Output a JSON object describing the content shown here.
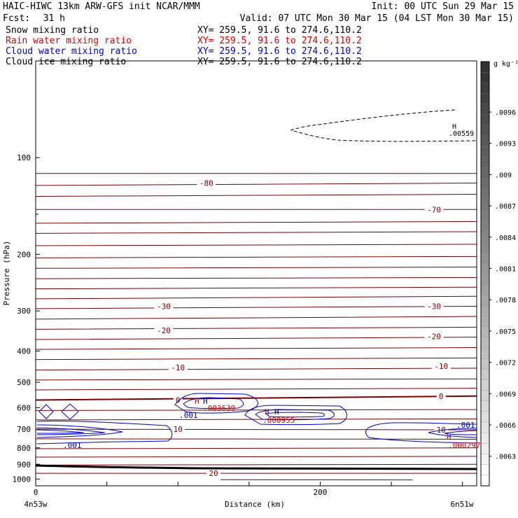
{
  "header": {
    "line1_left": "HAIC-HIWC 13km ARW-GFS init    NCAR/MMM",
    "line1_right": "Init: 00 UTC Sun 29 Mar 15",
    "fcst_label": "Fcst:",
    "fcst_value": "31 h",
    "valid": "Valid: 07 UTC Mon 30 Mar 15 (04 LST Mon 30 Mar 15)"
  },
  "fields": [
    {
      "name": "Snow mixing ratio",
      "xy": "XY= 259.5, 91.6 to 274.6,110.2",
      "color": "#000000"
    },
    {
      "name": "Rain water mixing ratio",
      "xy": "XY= 259.5, 91.6 to 274.6,110.2",
      "color": "#dd0000"
    },
    {
      "name": "Cloud water mixing ratio",
      "xy": "XY= 259.5, 91.6 to 274.6,110.2",
      "color": "#0000cc"
    },
    {
      "name": "Cloud ice mixing ratio",
      "xy": "XY= 259.5, 91.6 to 274.6,110.2",
      "color": "#000000"
    }
  ],
  "colorbar": {
    "unit": "g kg⁻¹",
    "labels": [
      ".0096",
      ".0093",
      ".009",
      ".0087",
      ".0084",
      ".0081",
      ".0078",
      ".0075",
      ".0072",
      ".0069",
      ".0066",
      ".0063"
    ]
  },
  "xaxis_endpoints": {
    "left": "4n53w",
    "right": "6n51w"
  },
  "annotations": {
    "h": "H",
    "ice_max": ".00559",
    "cloud_001": ".001",
    "rain_mid": ".003639",
    "rain_mid2": ".000955",
    "rain_right": ".000297"
  },
  "colors": {
    "temperature": "#7a0000",
    "snow": "#000000",
    "rain": "#dd0000",
    "cloud_water": "#0000cc",
    "terrain": "#000000"
  },
  "chart_data": {
    "type": "contour",
    "title": "",
    "xlabel": "Distance (km)",
    "ylabel": "Pressure (hPa)",
    "xlim": [
      0,
      310
    ],
    "ylim": [
      1050,
      50
    ],
    "y_scale": "log",
    "x_ticks": [
      0,
      200
    ],
    "y_ticks": [
      100,
      200,
      300,
      400,
      500,
      600,
      700,
      800,
      900,
      1000
    ],
    "grid": false,
    "temperature_contours": [
      {
        "label": "-80",
        "x": 120,
        "p": 120
      },
      {
        "label": "-70",
        "x": 280,
        "p": 145
      },
      {
        "label": "-30",
        "x": 90,
        "p": 290
      },
      {
        "label": "-30",
        "x": 280,
        "p": 290
      },
      {
        "label": "-20",
        "x": 90,
        "p": 345
      },
      {
        "label": "-20",
        "x": 280,
        "p": 360
      },
      {
        "label": "-10",
        "x": 100,
        "p": 450
      },
      {
        "label": "-10",
        "x": 285,
        "p": 445
      },
      {
        "label": "0",
        "x": 100,
        "p": 568
      },
      {
        "label": "0",
        "x": 285,
        "p": 552
      },
      {
        "label": "10",
        "x": 100,
        "p": 700
      },
      {
        "label": "10",
        "x": 285,
        "p": 703
      },
      {
        "label": "20",
        "x": 125,
        "p": 960
      }
    ]
  }
}
